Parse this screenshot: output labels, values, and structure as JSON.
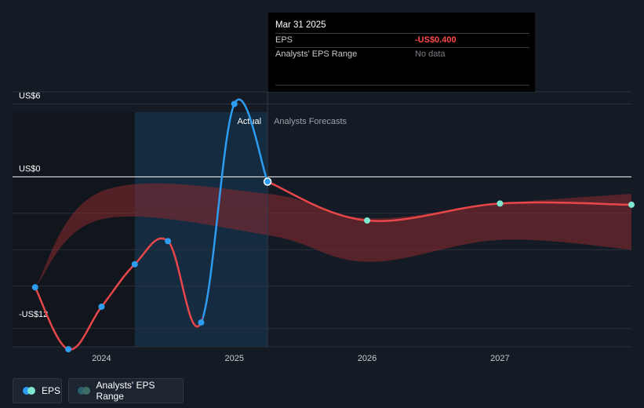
{
  "tooltip": {
    "date": "Mar 31 2025",
    "eps_label": "EPS",
    "eps_value": "-US$0.400",
    "range_label": "Analysts' EPS Range",
    "range_value": "No data"
  },
  "labels": {
    "actual": "Actual",
    "forecast": "Analysts Forecasts"
  },
  "legend": {
    "eps": "EPS",
    "range": "Analysts' EPS Range"
  },
  "colors": {
    "background": "#151b24",
    "eps_actual_past": "#e8474a",
    "eps_recent": "#2e9cf0",
    "forecast_line": "#e8474a",
    "forecast_point": "#7ee8cf",
    "range_fill": "#8a2a2e",
    "highlight_band": "#16324a"
  },
  "chart_data": {
    "type": "line",
    "y_ticks": [
      {
        "value": 6,
        "label": "US$6"
      },
      {
        "value": 0,
        "label": "US$0"
      },
      {
        "value": -12,
        "label": "-US$12"
      }
    ],
    "ylim": [
      -14,
      7
    ],
    "x_ticks": [
      {
        "value": 2024,
        "label": "2024"
      },
      {
        "value": 2025,
        "label": "2025"
      },
      {
        "value": 2026,
        "label": "2026"
      },
      {
        "value": 2027,
        "label": "2027"
      }
    ],
    "xlim": [
      2023.33,
      2027.99
    ],
    "grid": true,
    "series": [
      {
        "name": "EPS",
        "kind": "actual",
        "x": [
          2023.5,
          2023.75,
          2024.0,
          2024.25,
          2024.5,
          2024.75,
          2025.0,
          2025.25
        ],
        "y": [
          -9.1,
          -14.2,
          -10.7,
          -7.2,
          -5.3,
          -12.0,
          6.0,
          -0.4
        ]
      },
      {
        "name": "EPS",
        "kind": "forecast",
        "x": [
          2025.25,
          2026.0,
          2027.0,
          2027.99
        ],
        "y": [
          -0.4,
          -3.6,
          -2.2,
          -2.3
        ]
      }
    ],
    "range_band": {
      "name": "Analysts' EPS Range",
      "x": [
        2023.5,
        2024.0,
        2025.25,
        2026.0,
        2027.0,
        2027.99
      ],
      "upper": [
        -9.1,
        -1.2,
        -1.4,
        -3.4,
        -2.2,
        -1.4
      ],
      "lower": [
        -9.1,
        -3.5,
        -4.8,
        -7.0,
        -5.2,
        -6.0
      ]
    },
    "highlight_range": [
      2024.25,
      2025.25
    ],
    "past_shade_range": [
      2023.33,
      2024.25
    ],
    "divider_x": 2025.25,
    "tooltip_x": 2025.25
  }
}
